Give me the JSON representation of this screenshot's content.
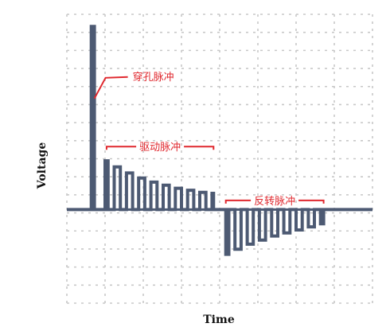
{
  "chart_data": {
    "type": "line",
    "title": "",
    "xlabel": "Time",
    "ylabel": "Voltage",
    "grid": true,
    "legend": "none",
    "xlim": [
      0,
      100
    ],
    "ylim": [
      -4.6,
      9.6
    ],
    "series": [
      {
        "points": [
          [
            0,
            0
          ],
          [
            8,
            0
          ],
          [
            8,
            9.0
          ],
          [
            9,
            9.0
          ],
          [
            9,
            0
          ],
          [
            12.5,
            0
          ],
          [
            12.5,
            2.4
          ],
          [
            13.5,
            2.4
          ],
          [
            13.5,
            0
          ],
          [
            15.5,
            0
          ],
          [
            15.5,
            2.1
          ],
          [
            17.5,
            2.1
          ],
          [
            17.5,
            0
          ],
          [
            19.5,
            0
          ],
          [
            19.5,
            1.8
          ],
          [
            21.5,
            1.8
          ],
          [
            21.5,
            0
          ],
          [
            23.5,
            0
          ],
          [
            23.5,
            1.55
          ],
          [
            25.5,
            1.55
          ],
          [
            25.5,
            0
          ],
          [
            27.5,
            0
          ],
          [
            27.5,
            1.35
          ],
          [
            29.5,
            1.35
          ],
          [
            29.5,
            0
          ],
          [
            31.5,
            0
          ],
          [
            31.5,
            1.2
          ],
          [
            33.5,
            1.2
          ],
          [
            33.5,
            0
          ],
          [
            35.5,
            0
          ],
          [
            35.5,
            1.05
          ],
          [
            37.5,
            1.05
          ],
          [
            37.5,
            0
          ],
          [
            39.5,
            0
          ],
          [
            39.5,
            0.95
          ],
          [
            41.5,
            0.95
          ],
          [
            41.5,
            0
          ],
          [
            43.5,
            0
          ],
          [
            43.5,
            0.85
          ],
          [
            45.5,
            0.85
          ],
          [
            45.5,
            0
          ],
          [
            47.5,
            0
          ],
          [
            47.5,
            0.8
          ],
          [
            48,
            0.8
          ],
          [
            48,
            0
          ],
          [
            52,
            0
          ],
          [
            52,
            -2.2
          ],
          [
            53,
            -2.2
          ],
          [
            53,
            0
          ],
          [
            55,
            0
          ],
          [
            55,
            -1.95
          ],
          [
            57,
            -1.95
          ],
          [
            57,
            0
          ],
          [
            59,
            0
          ],
          [
            59,
            -1.7
          ],
          [
            61,
            -1.7
          ],
          [
            61,
            0
          ],
          [
            63,
            0
          ],
          [
            63,
            -1.5
          ],
          [
            65,
            -1.5
          ],
          [
            65,
            0
          ],
          [
            67,
            0
          ],
          [
            67,
            -1.3
          ],
          [
            69,
            -1.3
          ],
          [
            69,
            0
          ],
          [
            71,
            0
          ],
          [
            71,
            -1.15
          ],
          [
            73,
            -1.15
          ],
          [
            73,
            0
          ],
          [
            75,
            0
          ],
          [
            75,
            -1.0
          ],
          [
            77,
            -1.0
          ],
          [
            77,
            0
          ],
          [
            79,
            0
          ],
          [
            79,
            -0.85
          ],
          [
            81,
            -0.85
          ],
          [
            81,
            0
          ],
          [
            83,
            0
          ],
          [
            83,
            -0.7
          ],
          [
            84,
            -0.7
          ],
          [
            84,
            0
          ],
          [
            100,
            0
          ]
        ]
      }
    ],
    "annotations": [
      {
        "text": "穿孔脉冲",
        "x": 9,
        "y": 6.4
      },
      {
        "text": "驱动脉冲",
        "x": [
          13,
          48
        ],
        "y": 3.1
      },
      {
        "text": "反转脉冲",
        "x": [
          52,
          84
        ],
        "y": 0.45
      }
    ]
  }
}
